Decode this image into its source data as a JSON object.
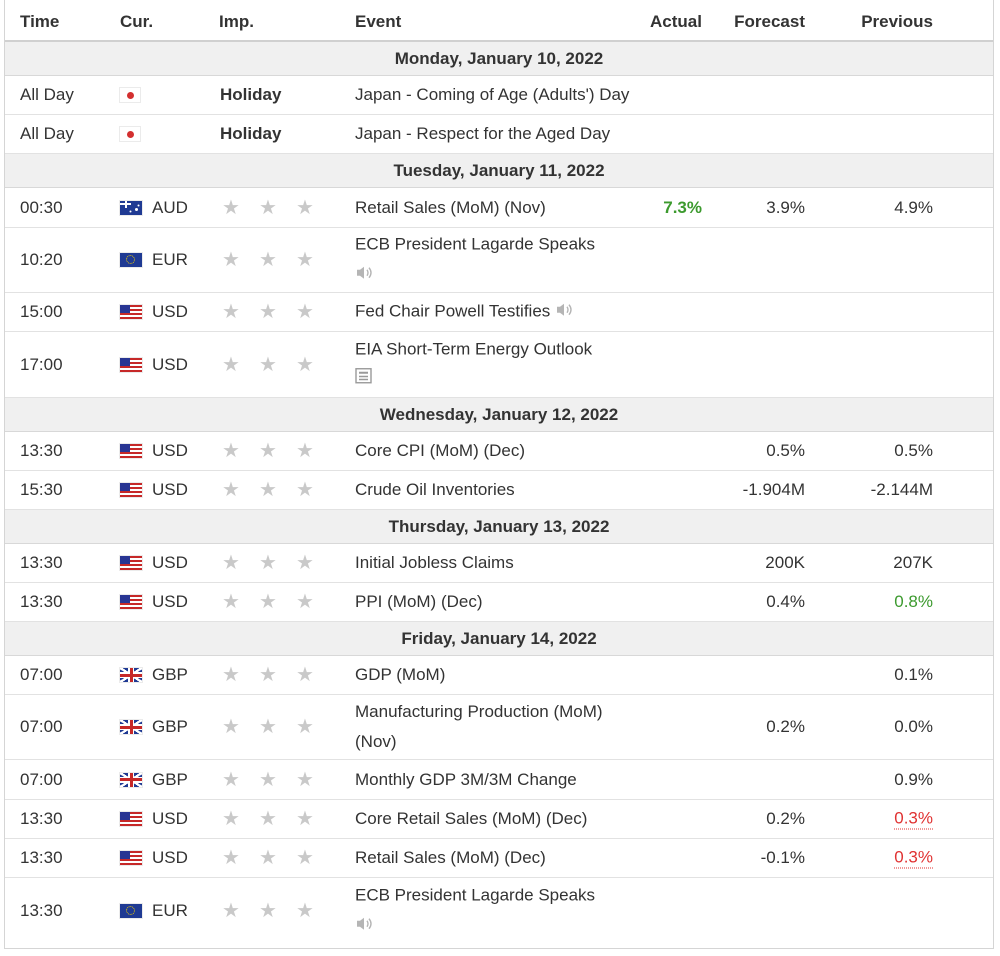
{
  "headers": {
    "time": "Time",
    "cur": "Cur.",
    "imp": "Imp.",
    "event": "Event",
    "actual": "Actual",
    "forecast": "Forecast",
    "previous": "Previous"
  },
  "days": [
    {
      "label": "Monday, January 10, 2022"
    },
    {
      "label": "Tuesday, January 11, 2022"
    },
    {
      "label": "Wednesday, January 12, 2022"
    },
    {
      "label": "Thursday, January 13, 2022"
    },
    {
      "label": "Friday, January 14, 2022"
    }
  ],
  "rows": [
    {
      "time": "All Day",
      "flag": "jp",
      "holiday": "Holiday",
      "event": "Japan - Coming of Age (Adults') Day"
    },
    {
      "time": "All Day",
      "flag": "jp",
      "holiday": "Holiday",
      "event": "Japan - Respect for the Aged Day"
    },
    {
      "time": "00:30",
      "flag": "au",
      "cur": "AUD",
      "event": "Retail Sales (MoM) (Nov)",
      "actual": "7.3%",
      "forecast": "3.9%",
      "previous": "4.9%"
    },
    {
      "time": "10:20",
      "flag": "eu",
      "cur": "EUR",
      "event": "ECB President Lagarde Speaks",
      "icon": "speaker-icon"
    },
    {
      "time": "15:00",
      "flag": "us",
      "cur": "USD",
      "event": "Fed Chair Powell Testifies",
      "icon": "speaker-icon"
    },
    {
      "time": "17:00",
      "flag": "us",
      "cur": "USD",
      "event": "EIA Short-Term Energy Outlook",
      "icon": "report-icon"
    },
    {
      "time": "13:30",
      "flag": "us",
      "cur": "USD",
      "event": "Core CPI (MoM) (Dec)",
      "forecast": "0.5%",
      "previous": "0.5%"
    },
    {
      "time": "15:30",
      "flag": "us",
      "cur": "USD",
      "event": "Crude Oil Inventories",
      "forecast": "-1.904M",
      "previous": "-2.144M"
    },
    {
      "time": "13:30",
      "flag": "us",
      "cur": "USD",
      "event": "Initial Jobless Claims",
      "forecast": "200K",
      "previous": "207K"
    },
    {
      "time": "13:30",
      "flag": "us",
      "cur": "USD",
      "event": "PPI (MoM) (Dec)",
      "forecast": "0.4%",
      "previous": "0.8%"
    },
    {
      "time": "07:00",
      "flag": "gb",
      "cur": "GBP",
      "event": "GDP (MoM)",
      "previous": "0.1%"
    },
    {
      "time": "07:00",
      "flag": "gb",
      "cur": "GBP",
      "event": "Manufacturing Production (MoM)",
      "event2": "(Nov)",
      "forecast": "0.2%",
      "previous": "0.0%"
    },
    {
      "time": "07:00",
      "flag": "gb",
      "cur": "GBP",
      "event": "Monthly GDP 3M/3M Change",
      "previous": "0.9%"
    },
    {
      "time": "13:30",
      "flag": "us",
      "cur": "USD",
      "event": "Core Retail Sales (MoM) (Dec)",
      "forecast": "0.2%",
      "previous": "0.3%"
    },
    {
      "time": "13:30",
      "flag": "us",
      "cur": "USD",
      "event": "Retail Sales (MoM) (Dec)",
      "forecast": "-0.1%",
      "previous": "0.3%"
    },
    {
      "time": "13:30",
      "flag": "eu",
      "cur": "EUR",
      "event": "ECB President Lagarde Speaks",
      "icon": "speaker-icon"
    }
  ],
  "colors": {
    "better": "#3c9a2e",
    "worse": "#e03232",
    "star": "#c9c9c9",
    "day_bg": "#f0f0f0"
  }
}
